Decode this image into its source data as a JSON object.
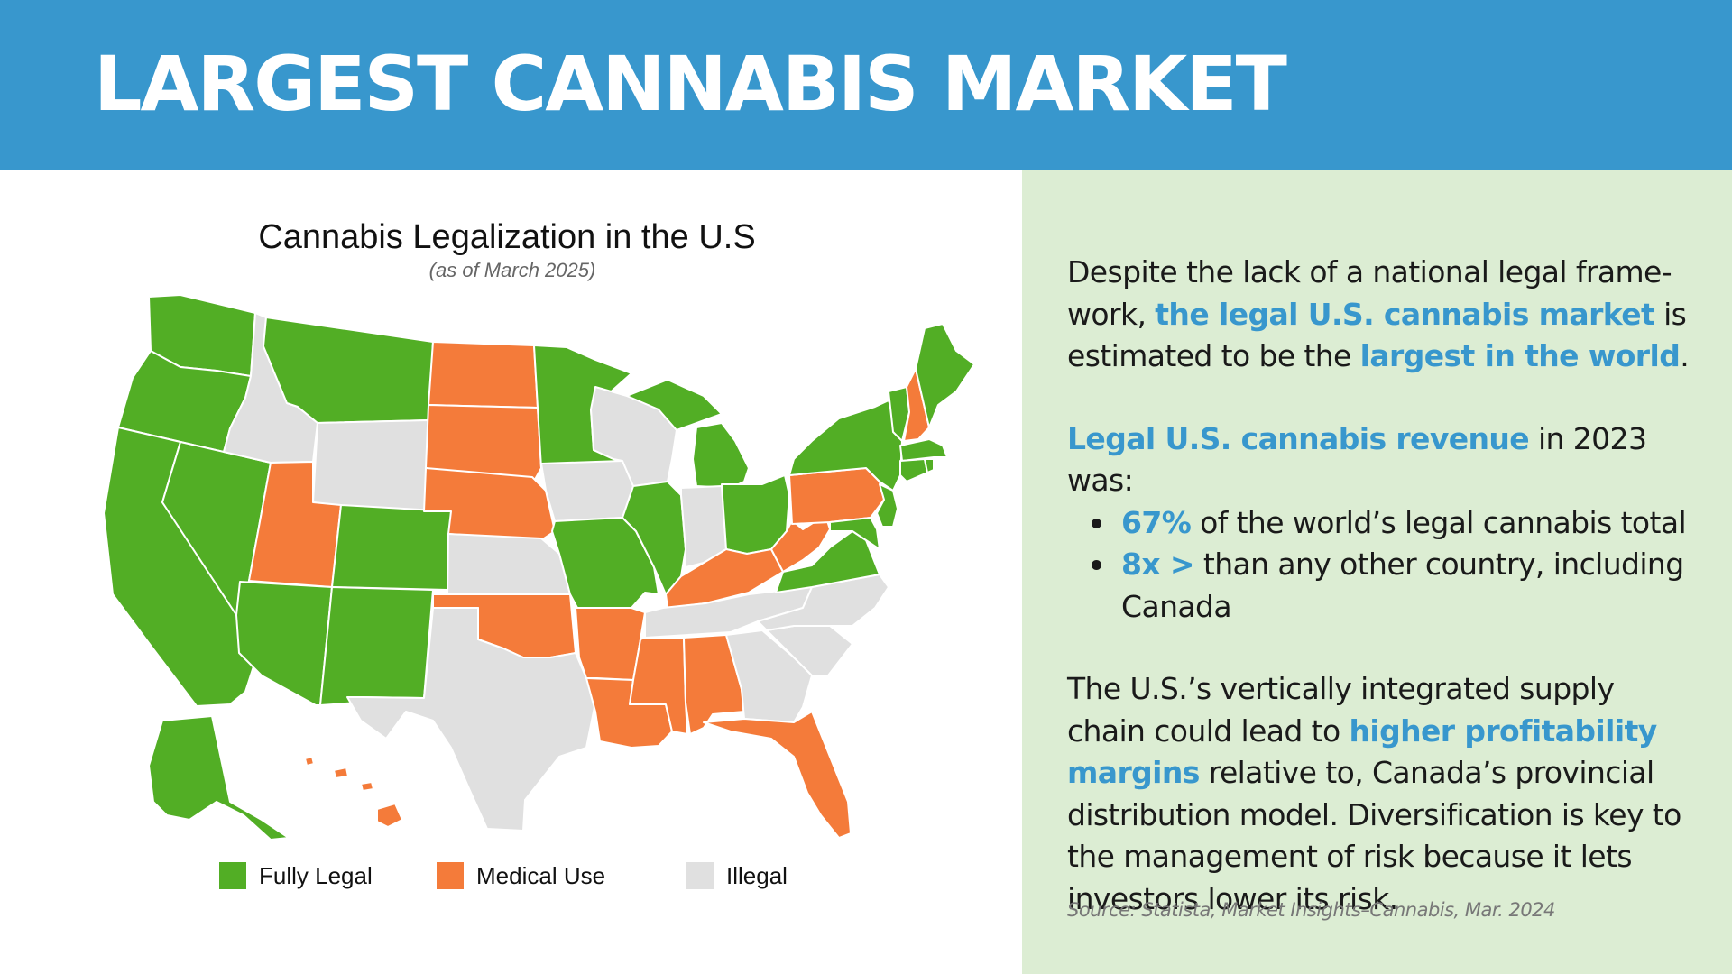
{
  "header": {
    "title": "LARGEST CANNABIS MARKET"
  },
  "map": {
    "title": "Cannabis Legalization in the U.S",
    "subtitle": "(as of March 2025)",
    "colors": {
      "fully_legal": "#52ae25",
      "medical_use": "#f47b3a",
      "illegal": "#e0e0e0",
      "border": "#ffffff"
    },
    "legend": [
      {
        "label": "Fully Legal",
        "color": "#52ae25"
      },
      {
        "label": "Medical Use",
        "color": "#f47b3a"
      },
      {
        "label": "Illegal",
        "color": "#e0e0e0"
      }
    ],
    "states": [
      {
        "name": "Washington",
        "status": "fully_legal"
      },
      {
        "name": "Oregon",
        "status": "fully_legal"
      },
      {
        "name": "California",
        "status": "fully_legal"
      },
      {
        "name": "Nevada",
        "status": "fully_legal"
      },
      {
        "name": "Idaho",
        "status": "illegal"
      },
      {
        "name": "Montana",
        "status": "fully_legal"
      },
      {
        "name": "Wyoming",
        "status": "illegal"
      },
      {
        "name": "Utah",
        "status": "medical_use"
      },
      {
        "name": "Arizona",
        "status": "fully_legal"
      },
      {
        "name": "Colorado",
        "status": "fully_legal"
      },
      {
        "name": "New Mexico",
        "status": "fully_legal"
      },
      {
        "name": "North Dakota",
        "status": "medical_use"
      },
      {
        "name": "South Dakota",
        "status": "medical_use"
      },
      {
        "name": "Nebraska",
        "status": "medical_use"
      },
      {
        "name": "Kansas",
        "status": "illegal"
      },
      {
        "name": "Oklahoma",
        "status": "medical_use"
      },
      {
        "name": "Texas",
        "status": "illegal"
      },
      {
        "name": "Minnesota",
        "status": "fully_legal"
      },
      {
        "name": "Iowa",
        "status": "illegal"
      },
      {
        "name": "Missouri",
        "status": "fully_legal"
      },
      {
        "name": "Arkansas",
        "status": "medical_use"
      },
      {
        "name": "Louisiana",
        "status": "medical_use"
      },
      {
        "name": "Wisconsin",
        "status": "illegal"
      },
      {
        "name": "Illinois",
        "status": "fully_legal"
      },
      {
        "name": "Michigan",
        "status": "fully_legal"
      },
      {
        "name": "Indiana",
        "status": "illegal"
      },
      {
        "name": "Ohio",
        "status": "fully_legal"
      },
      {
        "name": "Kentucky",
        "status": "medical_use"
      },
      {
        "name": "Tennessee",
        "status": "illegal"
      },
      {
        "name": "Mississippi",
        "status": "medical_use"
      },
      {
        "name": "Alabama",
        "status": "medical_use"
      },
      {
        "name": "Georgia",
        "status": "illegal"
      },
      {
        "name": "Florida",
        "status": "medical_use"
      },
      {
        "name": "South Carolina",
        "status": "illegal"
      },
      {
        "name": "North Carolina",
        "status": "illegal"
      },
      {
        "name": "Virginia",
        "status": "fully_legal"
      },
      {
        "name": "West Virginia",
        "status": "medical_use"
      },
      {
        "name": "Pennsylvania",
        "status": "medical_use"
      },
      {
        "name": "New York",
        "status": "fully_legal"
      },
      {
        "name": "Vermont",
        "status": "fully_legal"
      },
      {
        "name": "New Hampshire",
        "status": "medical_use"
      },
      {
        "name": "Maine",
        "status": "fully_legal"
      },
      {
        "name": "Massachusetts",
        "status": "fully_legal"
      },
      {
        "name": "Connecticut",
        "status": "fully_legal"
      },
      {
        "name": "Rhode Island",
        "status": "fully_legal"
      },
      {
        "name": "New Jersey",
        "status": "fully_legal"
      },
      {
        "name": "Delaware",
        "status": "fully_legal"
      },
      {
        "name": "Maryland",
        "status": "fully_legal"
      },
      {
        "name": "Alaska",
        "status": "fully_legal"
      },
      {
        "name": "Hawaii",
        "status": "medical_use"
      }
    ]
  },
  "text": {
    "p1_a": "Despite the lack of a national legal frame-work, ",
    "p1_b": "the legal U.S. cannabis market",
    "p1_c": " is estimated to be the ",
    "p1_d": "largest in the world",
    "p1_e": ".",
    "p2_a": "Legal U.S. cannabis revenue",
    "p2_b": " in 2023 was:",
    "bullet1_a": "67%",
    "bullet1_b": " of the world’s legal cannabis  total",
    "bullet2_a": "8x >",
    "bullet2_b": " than any other country, including Canada",
    "p3_a": "The U.S.’s vertically integrated supply chain could lead to ",
    "p3_b": "higher profitability margins",
    "p3_c": " relative to, Canada’s provincial distribution model. Diversification is key to the management of risk because it lets investors lower its risk.",
    "source": "Source: Statista, Market Insights–Cannabis, Mar. 2024"
  }
}
